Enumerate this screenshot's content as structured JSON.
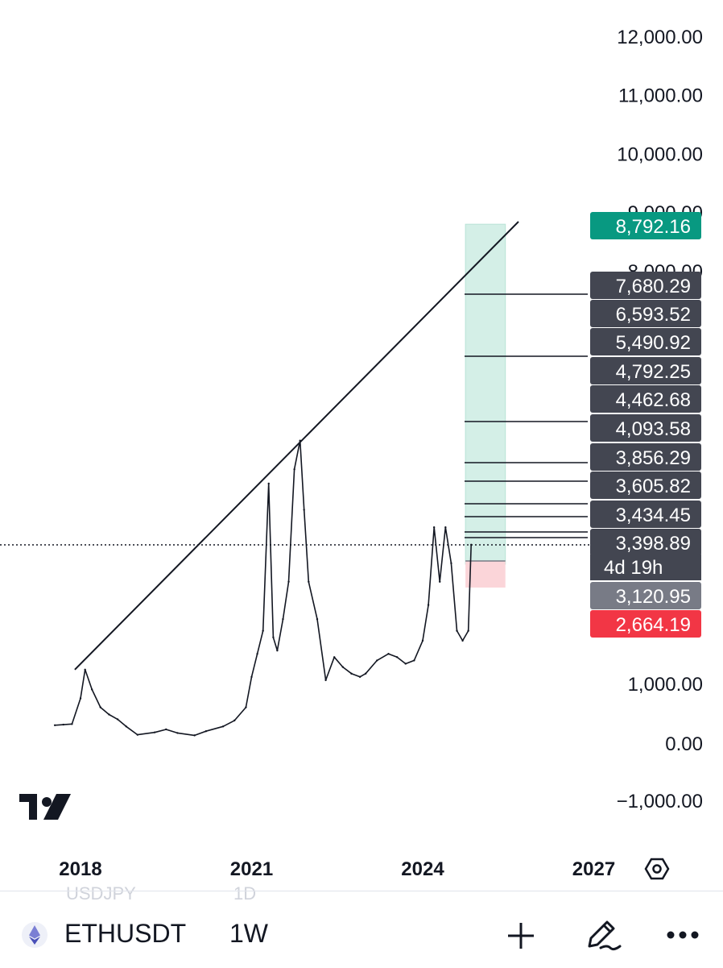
{
  "chart_data": {
    "type": "line",
    "symbol": "ETHUSDT",
    "interval": "1W",
    "price_axis": {
      "ticks": [
        "12,000.00",
        "11,000.00",
        "10,000.00",
        "9,000.00",
        "8,000.00",
        "1,000.00",
        "0.00",
        "−1,000.00"
      ],
      "tick_values": [
        12000,
        11000,
        10000,
        9000,
        8000,
        1000,
        0,
        -1000
      ]
    },
    "time_axis": {
      "ticks": [
        "2018",
        "2021",
        "2024",
        "2027"
      ],
      "tick_values": [
        2018,
        2021,
        2024,
        2027
      ]
    },
    "series": [
      {
        "values_note_free": true,
        "x": [
          2017.55,
          2017.7,
          2017.85,
          2018.0,
          2018.08,
          2018.2,
          2018.35,
          2018.5,
          2018.65,
          2018.8,
          2019.0,
          2019.3,
          2019.5,
          2019.7,
          2020.0,
          2020.2,
          2020.5,
          2020.7,
          2020.9,
          2021.0,
          2021.1,
          2021.2,
          2021.3,
          2021.38,
          2021.45,
          2021.55,
          2021.65,
          2021.75,
          2021.85,
          2021.92,
          2022.0,
          2022.15,
          2022.3,
          2022.45,
          2022.6,
          2022.75,
          2022.9,
          2023.0,
          2023.2,
          2023.4,
          2023.55,
          2023.7,
          2023.85,
          2024.0,
          2024.1,
          2024.2,
          2024.3,
          2024.4,
          2024.5,
          2024.6,
          2024.7,
          2024.8,
          2024.85
        ],
        "values": [
          300,
          310,
          320,
          750,
          1420,
          900,
          600,
          480,
          400,
          280,
          140,
          180,
          230,
          170,
          130,
          200,
          280,
          380,
          600,
          1200,
          1900,
          2600,
          4100,
          2400,
          2000,
          2800,
          3200,
          4300,
          4700,
          3800,
          3200,
          2800,
          1100,
          1800,
          1500,
          1300,
          1200,
          1300,
          1700,
          1900,
          1800,
          1600,
          1700,
          2300,
          3000,
          3600,
          3200,
          3600,
          3300,
          2600,
          2300,
          2600,
          3400
        ]
      }
    ],
    "trendline": {
      "from": [
        2017.9,
        1420
      ],
      "to": [
        2025.55,
        8950
      ]
    },
    "position": {
      "target": 8792.16,
      "entry": 3120.95,
      "stop": 2664.19,
      "x_start": 2024.75,
      "x_end": 2025.45
    },
    "horizontal_levels": [
      7680.29,
      6593.52,
      5490.92,
      4792.25,
      4462.68,
      4093.58,
      3856.29,
      3605.82,
      3434.45,
      3398.89
    ],
    "last_price": 3398.89,
    "countdown": "4d 19h",
    "price_tags": [
      {
        "label": "8,792.16",
        "value": 8792.16,
        "color": "#089981"
      },
      {
        "label": "7,680.29",
        "value": 7680.29,
        "color": "#434651"
      },
      {
        "label": "6,593.52",
        "value": 6593.52,
        "color": "#434651"
      },
      {
        "label": "5,490.92",
        "value": 5490.92,
        "color": "#434651"
      },
      {
        "label": "4,792.25",
        "value": 4792.25,
        "color": "#434651"
      },
      {
        "label": "4,462.68",
        "value": 4462.68,
        "color": "#434651"
      },
      {
        "label": "4,093.58",
        "value": 4093.58,
        "color": "#434651"
      },
      {
        "label": "3,856.29",
        "value": 3856.29,
        "color": "#434651"
      },
      {
        "label": "3,605.82",
        "value": 3605.82,
        "color": "#434651"
      },
      {
        "label": "3,434.45",
        "value": 3434.45,
        "color": "#434651"
      },
      {
        "label": "3,398.89",
        "value": 3398.89,
        "color": "#434651"
      },
      {
        "label": "3,120.95",
        "value": 3120.95,
        "color": "#787b86"
      },
      {
        "label": "2,664.19",
        "value": 2664.19,
        "color": "#f23645"
      }
    ],
    "colors": {
      "profit_zone": "#d4efe7",
      "loss_zone": "#fbd5d9",
      "line": "#131722",
      "trendline": "#131722"
    }
  },
  "toolbar": {
    "symbol": "ETHUSDT",
    "interval": "1W",
    "ghost_symbol": "USDJPY",
    "ghost_interval": "1D",
    "icons": [
      "ethereum-icon",
      "plus-icon",
      "pen-icon",
      "more-icon"
    ]
  },
  "settings_icon": "hexagon-settings-icon",
  "logo": "tradingview-logo"
}
